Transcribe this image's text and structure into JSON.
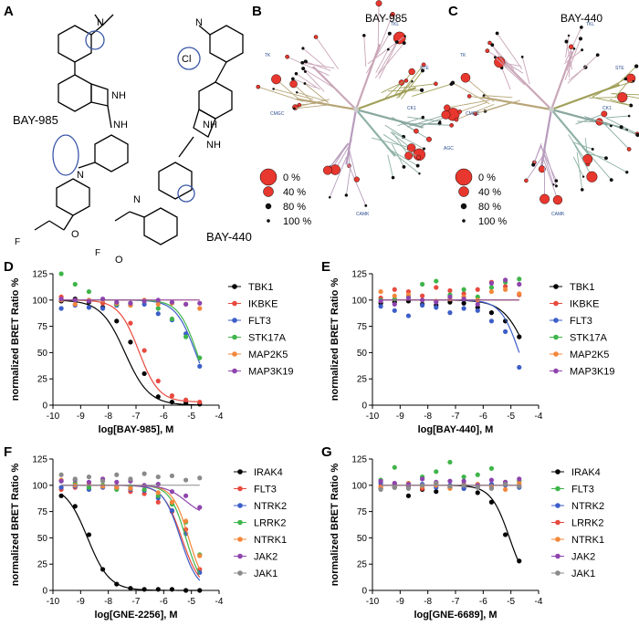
{
  "panel_letters": [
    "A",
    "B",
    "C",
    "D",
    "E",
    "F",
    "G"
  ],
  "structures": {
    "left_name": "BAY-985",
    "right_name": "BAY-440",
    "atoms": {
      "nh": "NH",
      "n": "N",
      "o": "O",
      "f": "F",
      "cl": "Cl"
    }
  },
  "trees": [
    {
      "title": "BAY-985",
      "groups": [
        "TK",
        "TKL",
        "STE",
        "CK1",
        "AGC",
        "CAMK",
        "CMGC"
      ]
    },
    {
      "title": "BAY-440",
      "groups": [
        "TK",
        "TKL",
        "STE",
        "CK1",
        "AGC",
        "CAMK",
        "CMGC"
      ]
    }
  ],
  "size_legend": [
    "0 %",
    "40 %",
    "80 %",
    "100 %"
  ],
  "colors": {
    "tk": "#c9a6b8",
    "tkl": "#c9a6b8",
    "ste": "#a0a05a",
    "cmgc": "#b8a679",
    "ck1": "#8aa8a0",
    "agc": "#8fb2a5",
    "camk": "#b79cbd",
    "dot": "#e8372e"
  },
  "chart_data": [
    {
      "panel": "D",
      "type": "scatter",
      "xlabel": "log[BAY-985], M",
      "ylabel": "normalized BRET Ratio  %",
      "xlim": [
        -10,
        -4
      ],
      "ylim": [
        0,
        125
      ],
      "xticks": [
        "-10",
        "-9",
        "-8",
        "-7",
        "-6",
        "-5",
        "-4"
      ],
      "yticks": [
        "0",
        "25",
        "50",
        "75",
        "100",
        "125"
      ],
      "legend_position": "right",
      "series": [
        {
          "name": "TBK1",
          "color": "#000000",
          "fit": {
            "top": 100,
            "bottom": 0,
            "logIC50": -7.4,
            "hill": 1.0
          },
          "x": [
            -9.7,
            -9.2,
            -8.7,
            -8.2,
            -7.7,
            -7.2,
            -6.7,
            -6.2,
            -5.7,
            -5.2,
            -4.7
          ],
          "y": [
            99,
            101,
            98,
            93,
            80,
            60,
            30,
            8,
            3,
            2,
            1
          ]
        },
        {
          "name": "IKBKE",
          "color": "#e84a3f",
          "fit": {
            "top": 100,
            "bottom": 3,
            "logIC50": -6.9,
            "hill": 1.2
          },
          "x": [
            -9.7,
            -9.2,
            -8.7,
            -8.2,
            -7.7,
            -7.2,
            -6.7,
            -6.2,
            -5.7,
            -5.2,
            -4.7
          ],
          "y": [
            103,
            100,
            99,
            97,
            95,
            78,
            52,
            23,
            9,
            5,
            3
          ]
        },
        {
          "name": "FLT3",
          "color": "#3c5ec8",
          "fit": {
            "top": 100,
            "bottom": 0,
            "logIC50": -4.85,
            "hill": 1.2
          },
          "x": [
            -9.7,
            -9.2,
            -8.7,
            -8.2,
            -7.7,
            -7.2,
            -6.7,
            -6.2,
            -5.7,
            -5.2,
            -4.7
          ],
          "y": [
            92,
            95,
            93,
            92,
            95,
            97,
            96,
            87,
            81,
            68,
            37
          ]
        },
        {
          "name": "STK17A",
          "color": "#3fb54a",
          "fit": {
            "top": 100,
            "bottom": 0,
            "logIC50": -4.8,
            "hill": 1.3
          },
          "x": [
            -9.7,
            -9.2,
            -8.7,
            -8.2,
            -7.7,
            -7.2,
            -6.7,
            -6.2,
            -5.7,
            -5.2,
            -4.7
          ],
          "y": [
            125,
            115,
            108,
            100,
            96,
            95,
            99,
            92,
            82,
            65,
            45
          ]
        },
        {
          "name": "MAP2K5",
          "color": "#f2873a",
          "fit": null,
          "x": [
            -9.7,
            -9.2,
            -8.7,
            -8.2,
            -7.7,
            -7.2,
            -6.7,
            -6.2,
            -5.7,
            -5.2,
            -4.7
          ],
          "y": [
            100,
            96,
            100,
            100,
            97,
            95,
            100,
            96,
            97,
            96,
            92
          ]
        },
        {
          "name": "MAP3K19",
          "color": "#8e44ad",
          "fit": null,
          "x": [
            -9.7,
            -9.2,
            -8.7,
            -8.2,
            -7.7,
            -7.2,
            -6.7,
            -6.2,
            -5.7,
            -5.2,
            -4.7
          ],
          "y": [
            101,
            100,
            99,
            101,
            98,
            97,
            99,
            100,
            98,
            96,
            97
          ]
        }
      ]
    },
    {
      "panel": "E",
      "type": "scatter",
      "xlabel": "log[BAY-440], M",
      "ylabel": "normalized BRET Ratio  %",
      "xlim": [
        -10,
        -4
      ],
      "ylim": [
        0,
        125
      ],
      "xticks": [
        "-10",
        "-9",
        "-8",
        "-7",
        "-6",
        "-5",
        "-4"
      ],
      "yticks": [
        "0",
        "25",
        "50",
        "75",
        "100",
        "125"
      ],
      "legend_position": "right",
      "series": [
        {
          "name": "TBK1",
          "color": "#000000",
          "fit": {
            "top": 100,
            "bottom": 0,
            "logIC50": -4.4,
            "hill": 1.0
          },
          "x": [
            -9.7,
            -9.2,
            -8.7,
            -8.2,
            -7.7,
            -7.2,
            -6.7,
            -6.2,
            -5.7,
            -5.2,
            -4.7
          ],
          "y": [
            97,
            98,
            99,
            96,
            95,
            98,
            97,
            93,
            88,
            80,
            65
          ]
        },
        {
          "name": "IKBKE",
          "color": "#e84a3f",
          "fit": null,
          "x": [
            -9.7,
            -9.2,
            -8.7,
            -8.2,
            -7.7,
            -7.2,
            -6.7,
            -6.2,
            -5.7,
            -5.2,
            -4.7
          ],
          "y": [
            102,
            110,
            108,
            104,
            112,
            109,
            106,
            110,
            117,
            113,
            105
          ]
        },
        {
          "name": "FLT3",
          "color": "#3c5ec8",
          "fit": {
            "top": 100,
            "bottom": 0,
            "logIC50": -4.7,
            "hill": 1.3
          },
          "x": [
            -9.7,
            -9.2,
            -8.7,
            -8.2,
            -7.7,
            -7.2,
            -6.7,
            -6.2,
            -5.7,
            -5.2,
            -4.7
          ],
          "y": [
            94,
            90,
            85,
            95,
            93,
            88,
            92,
            90,
            80,
            70,
            36
          ]
        },
        {
          "name": "STK17A",
          "color": "#3fb54a",
          "fit": null,
          "x": [
            -9.7,
            -9.2,
            -8.7,
            -8.2,
            -7.7,
            -7.2,
            -6.7,
            -6.2,
            -5.7,
            -5.2,
            -4.7
          ],
          "y": [
            100,
            101,
            104,
            115,
            118,
            105,
            110,
            103,
            112,
            117,
            120
          ]
        },
        {
          "name": "MAP2K5",
          "color": "#f2873a",
          "fit": null,
          "x": [
            -9.7,
            -9.2,
            -8.7,
            -8.2,
            -7.7,
            -7.2,
            -6.7,
            -6.2,
            -5.7,
            -5.2,
            -4.7
          ],
          "y": [
            108,
            104,
            105,
            100,
            99,
            101,
            103,
            100,
            108,
            110,
            106
          ]
        },
        {
          "name": "MAP3K19",
          "color": "#8e44ad",
          "fit": null,
          "x": [
            -9.7,
            -9.2,
            -8.7,
            -8.2,
            -7.7,
            -7.2,
            -6.7,
            -6.2,
            -5.7,
            -5.2,
            -4.7
          ],
          "y": [
            99,
            96,
            102,
            100,
            98,
            103,
            101,
            96,
            116,
            119,
            115
          ]
        }
      ]
    },
    {
      "panel": "F",
      "type": "scatter",
      "xlabel": "log[GNE-2256], M",
      "ylabel": "normalized BRET Ratio  %",
      "xlim": [
        -10,
        -4
      ],
      "ylim": [
        0,
        125
      ],
      "xticks": [
        "-10",
        "-9",
        "-8",
        "-7",
        "-6",
        "-5",
        "-4"
      ],
      "yticks": [
        "0",
        "25",
        "50",
        "75",
        "100",
        "125"
      ],
      "legend_position": "right",
      "series": [
        {
          "name": "IRAK4",
          "color": "#000000",
          "fit": {
            "top": 100,
            "bottom": 0,
            "logIC50": -8.75,
            "hill": 1.1
          },
          "x": [
            -9.7,
            -9.2,
            -8.7,
            -8.2,
            -7.7,
            -7.2,
            -6.7,
            -6.2,
            -5.7,
            -5.2,
            -4.7
          ],
          "y": [
            90,
            80,
            53,
            20,
            6,
            2,
            1,
            1,
            1,
            0,
            0
          ]
        },
        {
          "name": "FLT3",
          "color": "#e84a3f",
          "fit": {
            "top": 100,
            "bottom": 0,
            "logIC50": -5.35,
            "hill": 1.3
          },
          "x": [
            -9.7,
            -9.2,
            -8.7,
            -8.2,
            -7.7,
            -7.2,
            -6.7,
            -6.2,
            -5.7,
            -5.2,
            -4.7
          ],
          "y": [
            96,
            98,
            97,
            100,
            99,
            94,
            92,
            84,
            75,
            58,
            20
          ]
        },
        {
          "name": "NTRK2",
          "color": "#3c5ec8",
          "fit": {
            "top": 100,
            "bottom": 0,
            "logIC50": -5.4,
            "hill": 1.4
          },
          "x": [
            -9.7,
            -9.2,
            -8.7,
            -8.2,
            -7.7,
            -7.2,
            -6.7,
            -6.2,
            -5.7,
            -5.2,
            -4.7
          ],
          "y": [
            98,
            99,
            96,
            98,
            97,
            96,
            95,
            88,
            76,
            54,
            17
          ]
        },
        {
          "name": "LRRK2",
          "color": "#3fb54a",
          "fit": {
            "top": 100,
            "bottom": 0,
            "logIC50": -5.2,
            "hill": 1.5
          },
          "x": [
            -9.7,
            -9.2,
            -8.7,
            -8.2,
            -7.7,
            -7.2,
            -6.7,
            -6.2,
            -5.7,
            -5.2,
            -4.7
          ],
          "y": [
            104,
            102,
            98,
            100,
            96,
            99,
            96,
            90,
            82,
            65,
            34
          ]
        },
        {
          "name": "NTRK1",
          "color": "#f2873a",
          "fit": {
            "top": 100,
            "bottom": 0,
            "logIC50": -5.1,
            "hill": 1.5
          },
          "x": [
            -9.7,
            -9.2,
            -8.7,
            -8.2,
            -7.7,
            -7.2,
            -6.7,
            -6.2,
            -5.7,
            -5.2,
            -4.7
          ],
          "y": [
            105,
            100,
            102,
            99,
            98,
            97,
            100,
            93,
            84,
            66,
            33
          ]
        },
        {
          "name": "JAK2",
          "color": "#8e44ad",
          "fit": {
            "top": 100,
            "bottom": 70,
            "logIC50": -5.2,
            "hill": 1.2
          },
          "x": [
            -9.7,
            -9.2,
            -8.7,
            -8.2,
            -7.7,
            -7.2,
            -6.7,
            -6.2,
            -5.7,
            -5.2,
            -4.7
          ],
          "y": [
            104,
            105,
            103,
            106,
            103,
            104,
            100,
            101,
            94,
            90,
            79
          ]
        },
        {
          "name": "JAK1",
          "color": "#8a8a8a",
          "fit": null,
          "x": [
            -9.7,
            -9.2,
            -8.7,
            -8.2,
            -7.7,
            -7.2,
            -6.7,
            -6.2,
            -5.7,
            -5.2,
            -4.7
          ],
          "y": [
            110,
            106,
            108,
            104,
            110,
            106,
            111,
            108,
            109,
            105,
            107
          ]
        }
      ]
    },
    {
      "panel": "G",
      "type": "scatter",
      "xlabel": "log[GNE-6689], M",
      "ylabel": "normalized BRET Ratio  %",
      "xlim": [
        -10,
        -4
      ],
      "ylim": [
        0,
        125
      ],
      "xticks": [
        "-10",
        "-9",
        "-8",
        "-7",
        "-6",
        "-5",
        "-4"
      ],
      "yticks": [
        "0",
        "25",
        "50",
        "75",
        "100",
        "125"
      ],
      "legend_position": "right",
      "series": [
        {
          "name": "IRAK4",
          "color": "#000000",
          "fit": {
            "top": 100,
            "bottom": 0,
            "logIC50": -5.05,
            "hill": 1.3
          },
          "x": [
            -9.7,
            -9.2,
            -8.7,
            -8.2,
            -7.7,
            -7.2,
            -6.7,
            -6.2,
            -5.7,
            -5.2,
            -4.7
          ],
          "y": [
            97,
            98,
            90,
            96,
            94,
            98,
            97,
            93,
            84,
            53,
            28
          ]
        },
        {
          "name": "FLT3",
          "color": "#3fb54a",
          "fit": null,
          "x": [
            -9.7,
            -9.2,
            -8.7,
            -8.2,
            -7.7,
            -7.2,
            -6.7,
            -6.2,
            -5.7,
            -5.2,
            -4.7
          ],
          "y": [
            105,
            117,
            101,
            108,
            113,
            122,
            108,
            110,
            116,
            101,
            104
          ]
        },
        {
          "name": "NTRK2",
          "color": "#3c5ec8",
          "fit": null,
          "x": [
            -9.7,
            -9.2,
            -8.7,
            -8.2,
            -7.7,
            -7.2,
            -6.7,
            -6.2,
            -5.7,
            -5.2,
            -4.7
          ],
          "y": [
            102,
            100,
            99,
            101,
            98,
            100,
            97,
            99,
            101,
            100,
            98
          ]
        },
        {
          "name": "LRRK2",
          "color": "#e84a3f",
          "fit": null,
          "x": [
            -9.7,
            -9.2,
            -8.7,
            -8.2,
            -7.7,
            -7.2,
            -6.7,
            -6.2,
            -5.7,
            -5.2,
            -4.7
          ],
          "y": [
            99,
            101,
            100,
            97,
            102,
            99,
            101,
            100,
            98,
            103,
            100
          ]
        },
        {
          "name": "NTRK1",
          "color": "#f2873a",
          "fit": null,
          "x": [
            -9.7,
            -9.2,
            -8.7,
            -8.2,
            -7.7,
            -7.2,
            -6.7,
            -6.2,
            -5.7,
            -5.2,
            -4.7
          ],
          "y": [
            98,
            100,
            102,
            99,
            100,
            97,
            100,
            101,
            99,
            96,
            102
          ]
        },
        {
          "name": "JAK2",
          "color": "#8e44ad",
          "fit": null,
          "x": [
            -9.7,
            -9.2,
            -8.7,
            -8.2,
            -7.7,
            -7.2,
            -6.7,
            -6.2,
            -5.7,
            -5.2,
            -4.7
          ],
          "y": [
            104,
            102,
            101,
            106,
            103,
            104,
            104,
            100,
            105,
            103,
            106
          ]
        },
        {
          "name": "JAK1",
          "color": "#8a8a8a",
          "fit": null,
          "x": [
            -9.7,
            -9.2,
            -8.7,
            -8.2,
            -7.7,
            -7.2,
            -6.7,
            -6.2,
            -5.7,
            -5.2,
            -4.7
          ],
          "y": [
            96,
            98,
            97,
            100,
            102,
            99,
            100,
            98,
            97,
            101,
            99
          ]
        }
      ]
    }
  ]
}
